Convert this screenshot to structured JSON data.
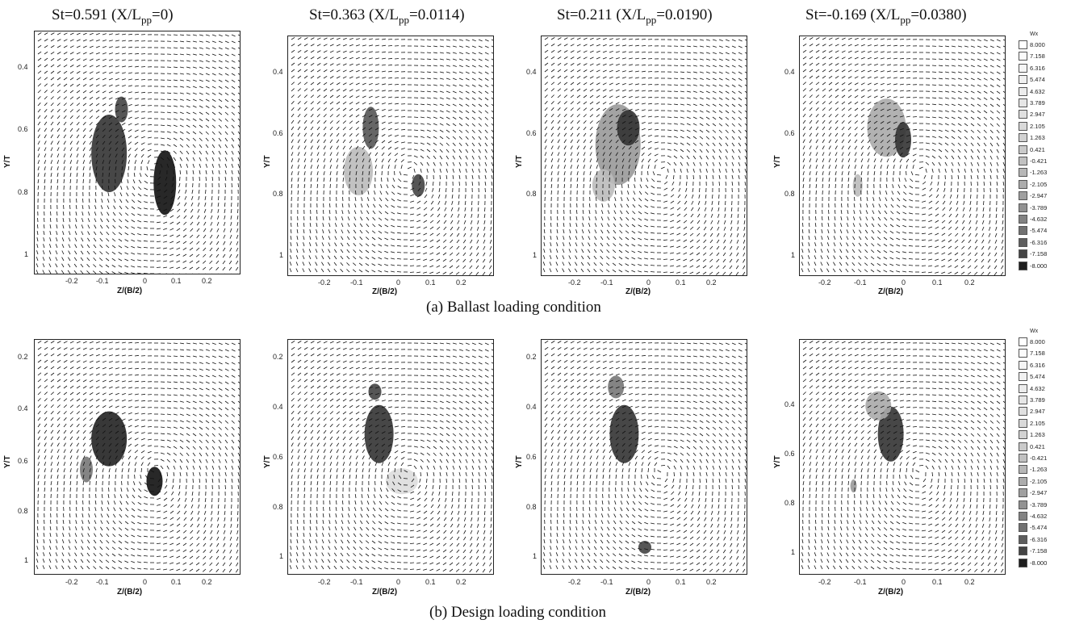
{
  "column_titles": [
    {
      "prefix": "St=0.591 (X/L",
      "sub": "pp",
      "suffix": "=0)"
    },
    {
      "prefix": "St=0.363 (X/L",
      "sub": "pp",
      "suffix": "=0.0114)"
    },
    {
      "prefix": "St=0.211 (X/L",
      "sub": "pp",
      "suffix": "=0.0190)"
    },
    {
      "prefix": "St=-0.169 (X/L",
      "sub": "pp",
      "suffix": "=0.0380)"
    }
  ],
  "captions": {
    "ballast": "(a) Ballast loading condition",
    "design": "(b) Design loading condition"
  },
  "axes": {
    "ylabel": "Y/T",
    "xlabel": "Z/(B/2)",
    "xticks": [
      "-0.2",
      "-0.1",
      "0",
      "0.1",
      "0.2"
    ],
    "yticks_ballast": [
      "0.4",
      "0.6",
      "0.8",
      "1"
    ],
    "yticks_design": [
      "0.2",
      "0.4",
      "0.6",
      "0.8",
      "1"
    ]
  },
  "legend": {
    "title": "Wx",
    "levels": [
      "8.000",
      "7.158",
      "6.316",
      "5.474",
      "4.632",
      "3.789",
      "2.947",
      "2.105",
      "1.263",
      "0.421",
      "-0.421",
      "-1.263",
      "-2.105",
      "-2.947",
      "-3.789",
      "-4.632",
      "-5.474",
      "-6.316",
      "-7.158",
      "-8.000"
    ],
    "colors": [
      "#ffffff",
      "#fbfbfb",
      "#f6f6f6",
      "#f1f1f1",
      "#ececec",
      "#e6e6e6",
      "#e0e0e0",
      "#d9d9d9",
      "#d2d2d2",
      "#cacaca",
      "#c1c1c1",
      "#b7b7b7",
      "#acacac",
      "#a0a0a0",
      "#929292",
      "#838383",
      "#727272",
      "#5e5e5e",
      "#444444",
      "#1e1e1e"
    ]
  }
}
